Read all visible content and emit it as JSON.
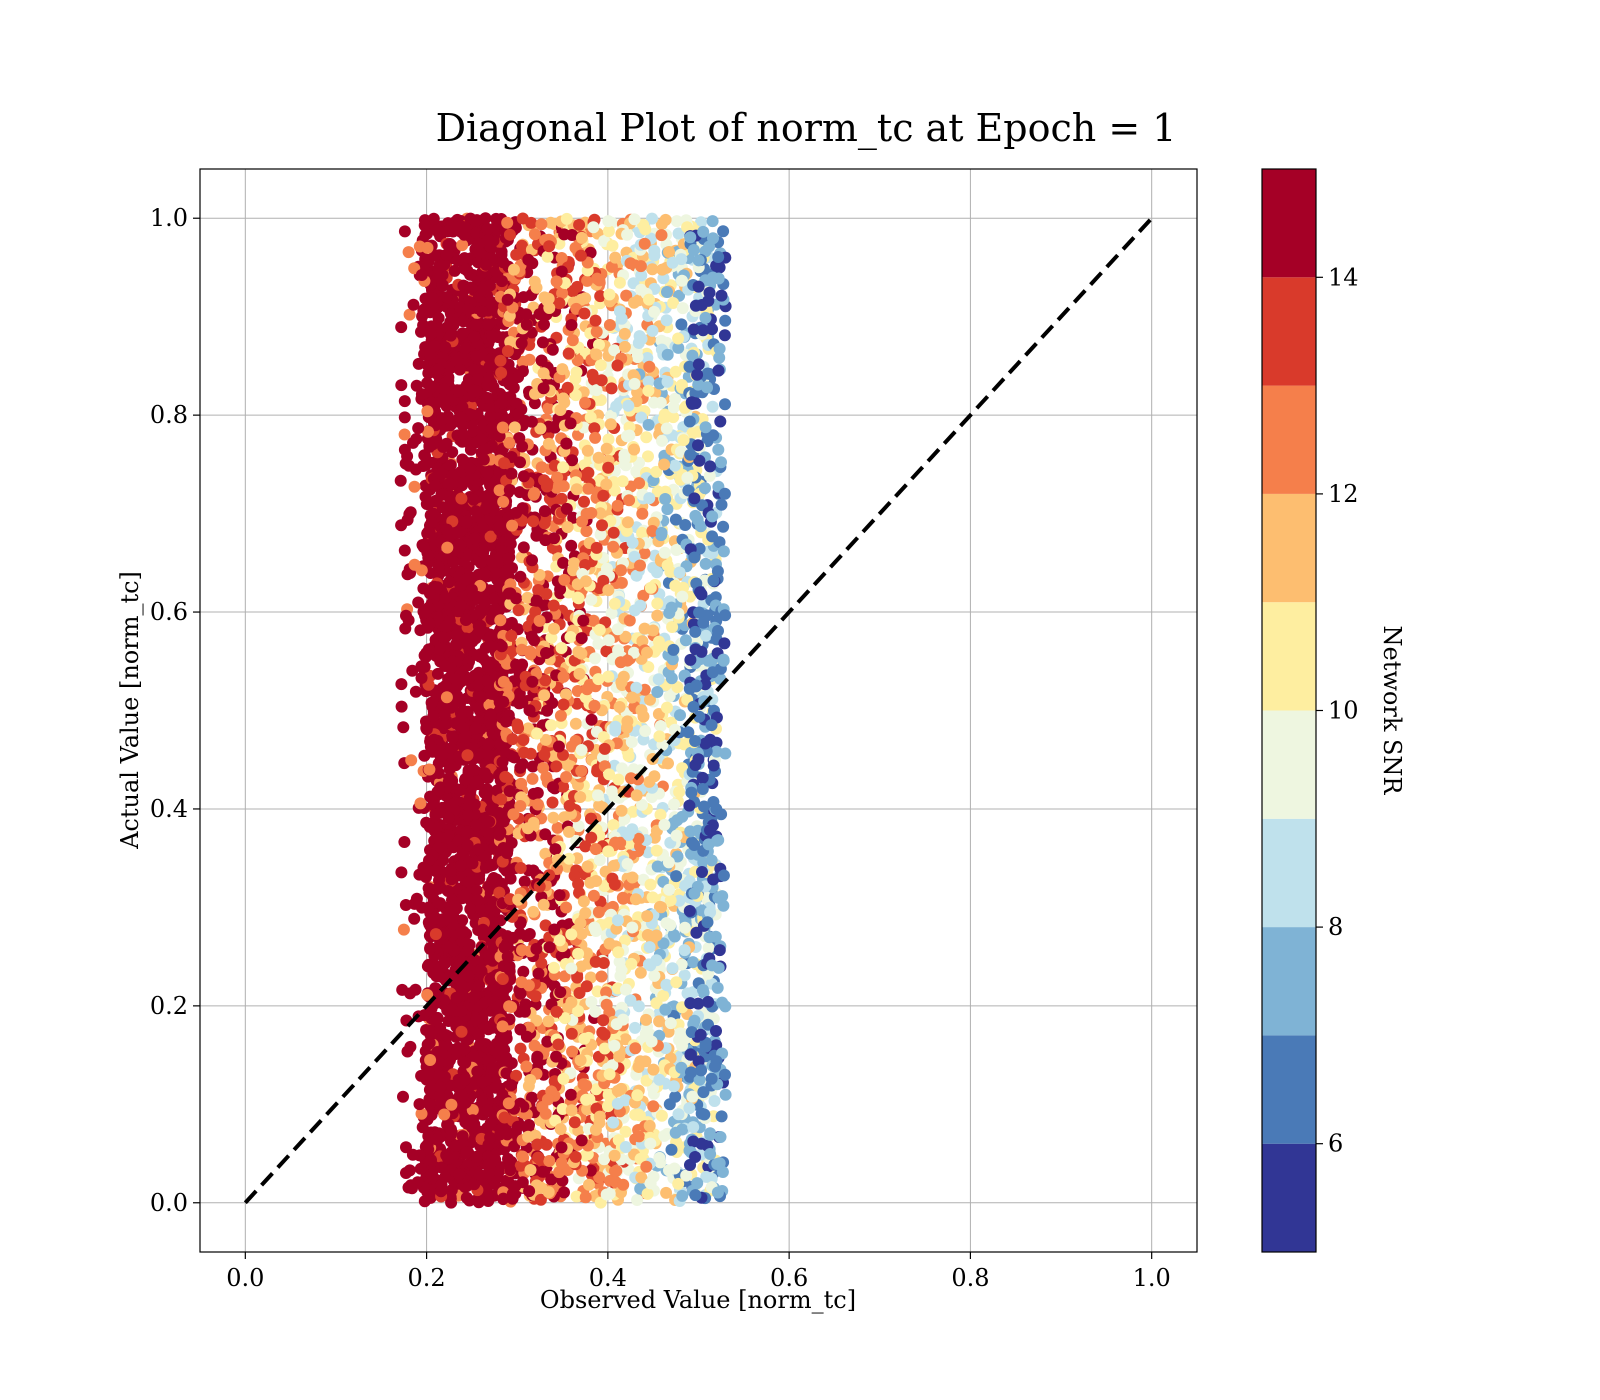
{
  "chart_data": {
    "type": "scatter",
    "title": "Diagonal Plot of norm_tc at Epoch = 1",
    "xlabel": "Observed Value [norm_tc]",
    "ylabel": "Actual Value [norm_tc]",
    "xlim": [
      -0.05,
      1.05
    ],
    "ylim": [
      -0.05,
      1.05
    ],
    "xticks": [
      "0.0",
      "0.2",
      "0.4",
      "0.6",
      "0.8",
      "1.0"
    ],
    "yticks": [
      "0.0",
      "0.2",
      "0.4",
      "0.6",
      "0.8",
      "1.0"
    ],
    "grid": true,
    "reference_line": {
      "style": "dashed",
      "color": "#000000",
      "from": [
        0.0,
        0.0
      ],
      "to": [
        1.0,
        1.0
      ]
    },
    "colorbar": {
      "label": "Network SNR",
      "range": [
        5,
        15
      ],
      "ticks": [
        "6",
        "8",
        "10",
        "12",
        "14"
      ],
      "colormap": "RdYlBu_r",
      "bins": [
        "#313695",
        "#4a7ab7",
        "#7fb3d5",
        "#bfe1ec",
        "#eef6e0",
        "#feeea0",
        "#fdbe70",
        "#f57f4b",
        "#d93a2b",
        "#a50026"
      ]
    },
    "point_cloud": {
      "x_range_core": [
        0.2,
        0.52
      ],
      "x_range_spread": [
        0.17,
        0.54
      ],
      "y_range": [
        0.0,
        1.0
      ],
      "dense_high_snr_band_x": [
        0.2,
        0.29
      ],
      "note_color_trend": "SNR decreases as observed value increases"
    }
  }
}
